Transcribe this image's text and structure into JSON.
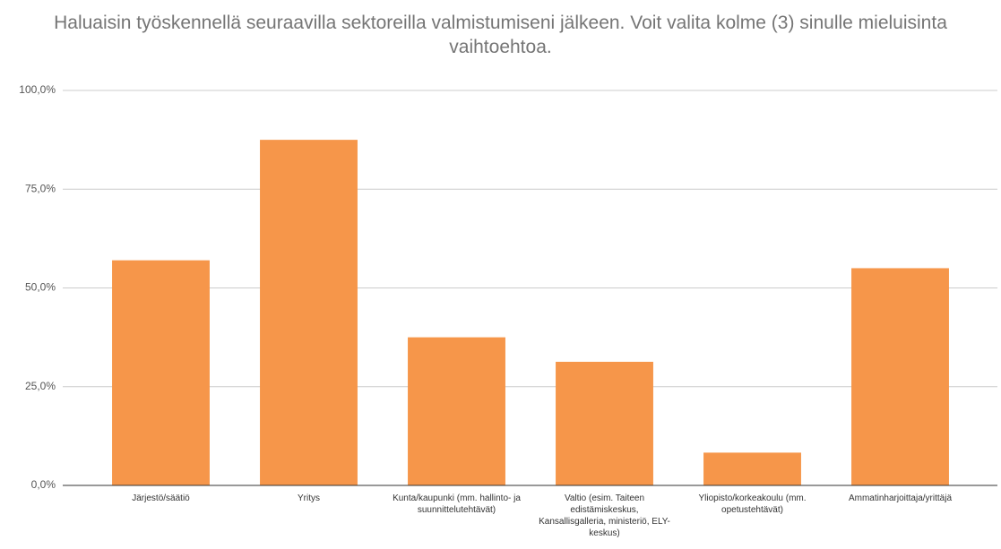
{
  "chart_data": {
    "type": "bar",
    "title": "Haluaisin työskennellä seuraavilla sektoreilla valmistumiseni jälkeen. Voit valita kolme (3) sinulle mieluisinta vaihtoehtoa.",
    "categories": [
      "Järjestö/säätiö",
      "Yritys",
      "Kunta/kaupunki (mm. hallinto- ja suunnittelutehtävät)",
      "Valtio (esim. Taiteen edistämiskeskus, Kansallisgalleria, ministeriö, ELY-keskus)",
      "Yliopisto/korkeakoulu (mm. opetustehtävät)",
      "Ammatinharjoittaja/yrittäjä"
    ],
    "values": [
      57,
      87.5,
      37.5,
      31.3,
      8.3,
      55
    ],
    "color": "#f6964a",
    "ylim": [
      0,
      100
    ],
    "yticks": [
      {
        "value": 0,
        "label": "0,0%"
      },
      {
        "value": 25,
        "label": "25,0%"
      },
      {
        "value": 50,
        "label": "50,0%"
      },
      {
        "value": 75,
        "label": "75,0%"
      },
      {
        "value": 100,
        "label": "100,0%"
      }
    ],
    "grid": true
  }
}
